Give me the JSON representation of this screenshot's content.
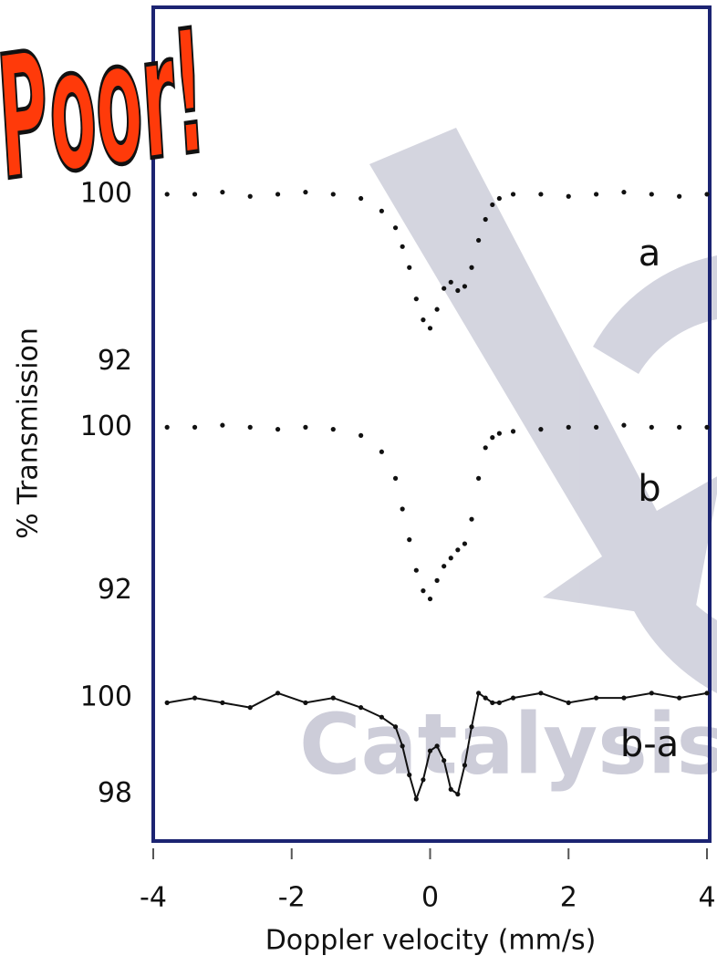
{
  "chart_data": [
    {
      "type": "scatter",
      "label": "a",
      "ylabel": "% Transmission",
      "xlim": [
        -4,
        4
      ],
      "ylim": [
        91.5,
        101
      ],
      "yticks": [
        92,
        100
      ],
      "x": [
        -3.8,
        -3.4,
        -3.0,
        -2.6,
        -2.2,
        -1.8,
        -1.4,
        -1.0,
        -0.7,
        -0.5,
        -0.4,
        -0.3,
        -0.2,
        -0.1,
        0,
        0.1,
        0.2,
        0.3,
        0.4,
        0.5,
        0.6,
        0.7,
        0.8,
        0.9,
        1.0,
        1.2,
        1.6,
        2.0,
        2.4,
        2.8,
        3.2,
        3.6,
        4.0
      ],
      "series": [
        {
          "color": "#111111",
          "values": [
            100,
            100,
            100.1,
            99.9,
            100,
            100.1,
            100,
            99.8,
            99.2,
            98.4,
            97.5,
            96.5,
            95.0,
            94.0,
            93.6,
            94.5,
            95.5,
            95.8,
            95.4,
            95.6,
            96.5,
            97.8,
            98.8,
            99.5,
            99.8,
            100,
            100,
            99.9,
            100,
            100.1,
            100,
            99.9,
            100
          ]
        }
      ]
    },
    {
      "type": "scatter",
      "label": "b",
      "xlim": [
        -4,
        4
      ],
      "ylim": [
        91,
        101
      ],
      "yticks": [
        92,
        100
      ],
      "x": [
        -3.8,
        -3.4,
        -3.0,
        -2.6,
        -2.2,
        -1.8,
        -1.4,
        -1.0,
        -0.7,
        -0.5,
        -0.4,
        -0.3,
        -0.2,
        -0.1,
        0,
        0.1,
        0.2,
        0.3,
        0.4,
        0.5,
        0.6,
        0.7,
        0.8,
        0.9,
        1.0,
        1.2,
        1.6,
        2.0,
        2.4,
        2.8,
        3.2,
        3.6,
        4.0
      ],
      "series": [
        {
          "color": "#111111",
          "values": [
            100,
            100,
            100.1,
            100,
            99.9,
            100,
            99.9,
            99.6,
            98.8,
            97.5,
            96,
            94.5,
            93,
            92,
            91.6,
            92.5,
            93.2,
            93.6,
            94,
            94.3,
            95.5,
            97.5,
            99,
            99.5,
            99.7,
            99.8,
            99.9,
            100,
            100,
            100.1,
            100,
            100,
            100
          ]
        }
      ]
    },
    {
      "type": "line",
      "label": "b-a",
      "xlabel": "Doppler velocity (mm/s)",
      "xlim": [
        -4,
        4
      ],
      "xticks": [
        -4,
        -2,
        0,
        2,
        4
      ],
      "ylim": [
        97.5,
        100.4
      ],
      "yticks": [
        98,
        100
      ],
      "x": [
        -3.8,
        -3.4,
        -3.0,
        -2.6,
        -2.2,
        -1.8,
        -1.4,
        -1.0,
        -0.7,
        -0.5,
        -0.4,
        -0.3,
        -0.2,
        -0.1,
        0,
        0.1,
        0.2,
        0.3,
        0.4,
        0.5,
        0.6,
        0.7,
        0.8,
        0.9,
        1.0,
        1.2,
        1.6,
        2.0,
        2.4,
        2.8,
        3.2,
        3.6,
        4.0
      ],
      "series": [
        {
          "color": "#111111",
          "values": [
            99.9,
            100,
            99.9,
            99.8,
            100.1,
            99.9,
            100,
            99.8,
            99.6,
            99.4,
            99.0,
            98.4,
            97.9,
            98.3,
            98.9,
            99.0,
            98.7,
            98.1,
            98.0,
            98.6,
            99.4,
            100.1,
            100,
            99.9,
            99.9,
            100,
            100.1,
            99.9,
            100,
            100,
            100.1,
            100,
            100.1
          ]
        }
      ]
    }
  ],
  "annotations": {
    "stamp": "Poor!",
    "watermark": "Catalysis"
  }
}
